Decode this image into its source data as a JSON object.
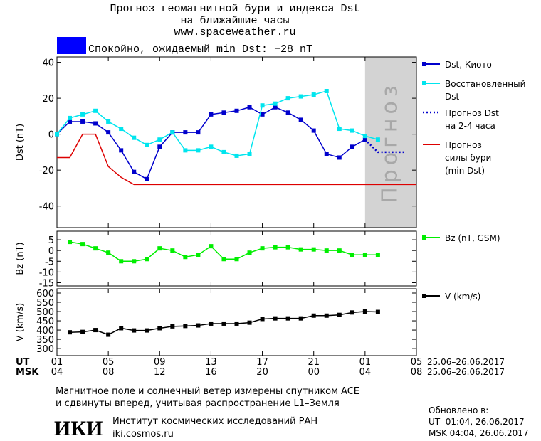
{
  "header": {
    "title": "Прогноз геомагнитной бури и индекса Dst",
    "subtitle": "на ближайшие часы",
    "url": "www.spaceweather.ru"
  },
  "status": {
    "text": "Спокойно, ожидаемый min Dst: −28 nT",
    "color": "#0000ff"
  },
  "chart_data": [
    {
      "type": "line",
      "y_label": "Dst (nT)",
      "xlim": [
        0,
        28
      ],
      "ylim": [
        -52,
        43
      ],
      "yticks": [
        -40,
        -20,
        0,
        20,
        40
      ],
      "forecast_span": [
        24,
        28
      ],
      "forecast_label": "Прогноз",
      "forecast_color": "#d3d3d3",
      "series": [
        {
          "name": "Dst, Киото",
          "color": "#0000cc",
          "style": "solid",
          "marker": "square",
          "x": [
            0,
            1,
            2,
            3,
            4,
            5,
            6,
            7,
            8,
            9,
            10,
            11,
            12,
            13,
            14,
            15,
            16,
            17,
            18,
            19,
            20,
            21,
            22,
            23,
            24
          ],
          "values": [
            0,
            7,
            7,
            6,
            1,
            -9,
            -21,
            -25,
            -7,
            1,
            1,
            1,
            11,
            12,
            13,
            15,
            11,
            15,
            12,
            8,
            2,
            -11,
            -13,
            -7,
            -3
          ]
        },
        {
          "name": "Восстановленный\nDst",
          "color": "#00e5ee",
          "style": "solid",
          "marker": "square",
          "x": [
            0,
            1,
            2,
            3,
            4,
            5,
            6,
            7,
            8,
            9,
            10,
            11,
            12,
            13,
            14,
            15,
            16,
            17,
            18,
            19,
            20,
            21,
            22,
            23,
            24,
            25
          ],
          "values": [
            0,
            9,
            11,
            13,
            7,
            3,
            -2,
            -6,
            -3,
            1,
            -9,
            -9,
            -7,
            -10,
            -12,
            -11,
            16,
            17,
            20,
            21,
            22,
            24,
            3,
            2,
            -1,
            -3
          ]
        },
        {
          "name": "Прогноз Dst\nна 2-4 часа",
          "color": "#0000cc",
          "style": "dotted",
          "marker": "none",
          "x": [
            24,
            25,
            26,
            27
          ],
          "values": [
            -3,
            -10,
            -10,
            -10
          ]
        },
        {
          "name": "Прогноз\nсилы бури\n(min Dst)",
          "color": "#dd0000",
          "style": "solid",
          "marker": "none",
          "x": [
            0,
            1,
            2,
            3,
            4,
            5,
            6,
            28
          ],
          "values": [
            -13,
            -13,
            0,
            0,
            -18,
            -24,
            -28,
            -28
          ]
        }
      ]
    },
    {
      "type": "line",
      "y_label": "Bz (nT)",
      "xlim": [
        0,
        28
      ],
      "ylim": [
        -16.5,
        9
      ],
      "yticks": [
        -15,
        -10,
        -5,
        0,
        5
      ],
      "series": [
        {
          "name": "Bz (nT, GSM)",
          "color": "#00ee00",
          "style": "solid",
          "marker": "square",
          "x": [
            1,
            2,
            3,
            4,
            5,
            6,
            7,
            8,
            9,
            10,
            11,
            12,
            13,
            14,
            15,
            16,
            17,
            18,
            19,
            20,
            21,
            22,
            23,
            24,
            25
          ],
          "values": [
            4,
            3,
            1,
            -1,
            -5,
            -5,
            -4,
            1,
            0,
            -3,
            -2,
            2,
            -4,
            -4,
            -1,
            1,
            1.5,
            1.5,
            0.5,
            0.5,
            0,
            0,
            -2,
            -2,
            -2
          ]
        }
      ]
    },
    {
      "type": "line",
      "y_label": "V (km/s)",
      "xlim": [
        0,
        28
      ],
      "ylim": [
        262,
        623
      ],
      "yticks": [
        300,
        350,
        400,
        450,
        500,
        550,
        600
      ],
      "xticks": [
        {
          "value": 0,
          "label": "01"
        },
        {
          "value": 4,
          "label": "05"
        },
        {
          "value": 8,
          "label": "09"
        },
        {
          "value": 12,
          "label": "13"
        },
        {
          "value": 16,
          "label": "17"
        },
        {
          "value": 20,
          "label": "21"
        },
        {
          "value": 24,
          "label": "01"
        },
        {
          "value": 28,
          "label": "05"
        }
      ],
      "x2ticks": [
        {
          "value": 0,
          "label": "04"
        },
        {
          "value": 4,
          "label": "08"
        },
        {
          "value": 8,
          "label": "12"
        },
        {
          "value": 12,
          "label": "16"
        },
        {
          "value": 16,
          "label": "20"
        },
        {
          "value": 20,
          "label": "00"
        },
        {
          "value": 24,
          "label": "04"
        },
        {
          "value": 28,
          "label": "08"
        }
      ],
      "x_label": "UT",
      "x2_label": "MSK",
      "x_range": "25.06–26.06.2017",
      "x2_range": "25.06–26.06.2017",
      "series": [
        {
          "name": "V (km/s)",
          "color": "#000000",
          "style": "solid",
          "marker": "square",
          "x": [
            1,
            2,
            3,
            4,
            5,
            6,
            7,
            8,
            9,
            10,
            11,
            12,
            13,
            14,
            15,
            16,
            17,
            18,
            19,
            20,
            21,
            22,
            23,
            24,
            25
          ],
          "values": [
            388,
            390,
            400,
            375,
            410,
            398,
            398,
            410,
            420,
            422,
            425,
            435,
            435,
            435,
            440,
            460,
            463,
            463,
            463,
            478,
            478,
            482,
            495,
            500,
            498
          ]
        }
      ]
    }
  ],
  "footer": {
    "note": [
      "Магнитное поле и солнечный ветер измерены спутником ACE",
      "и сдвинуты вперед, учитывая распространение L1–Земля"
    ],
    "logo": "ИКИ",
    "institute": "Институт космических исследований РАН",
    "site": "iki.cosmos.ru",
    "updated_label": "Обновлено в:",
    "updated_ut": "UT  01:04, 26.06.2017",
    "updated_msk": "MSK 04:04, 26.06.2017"
  }
}
